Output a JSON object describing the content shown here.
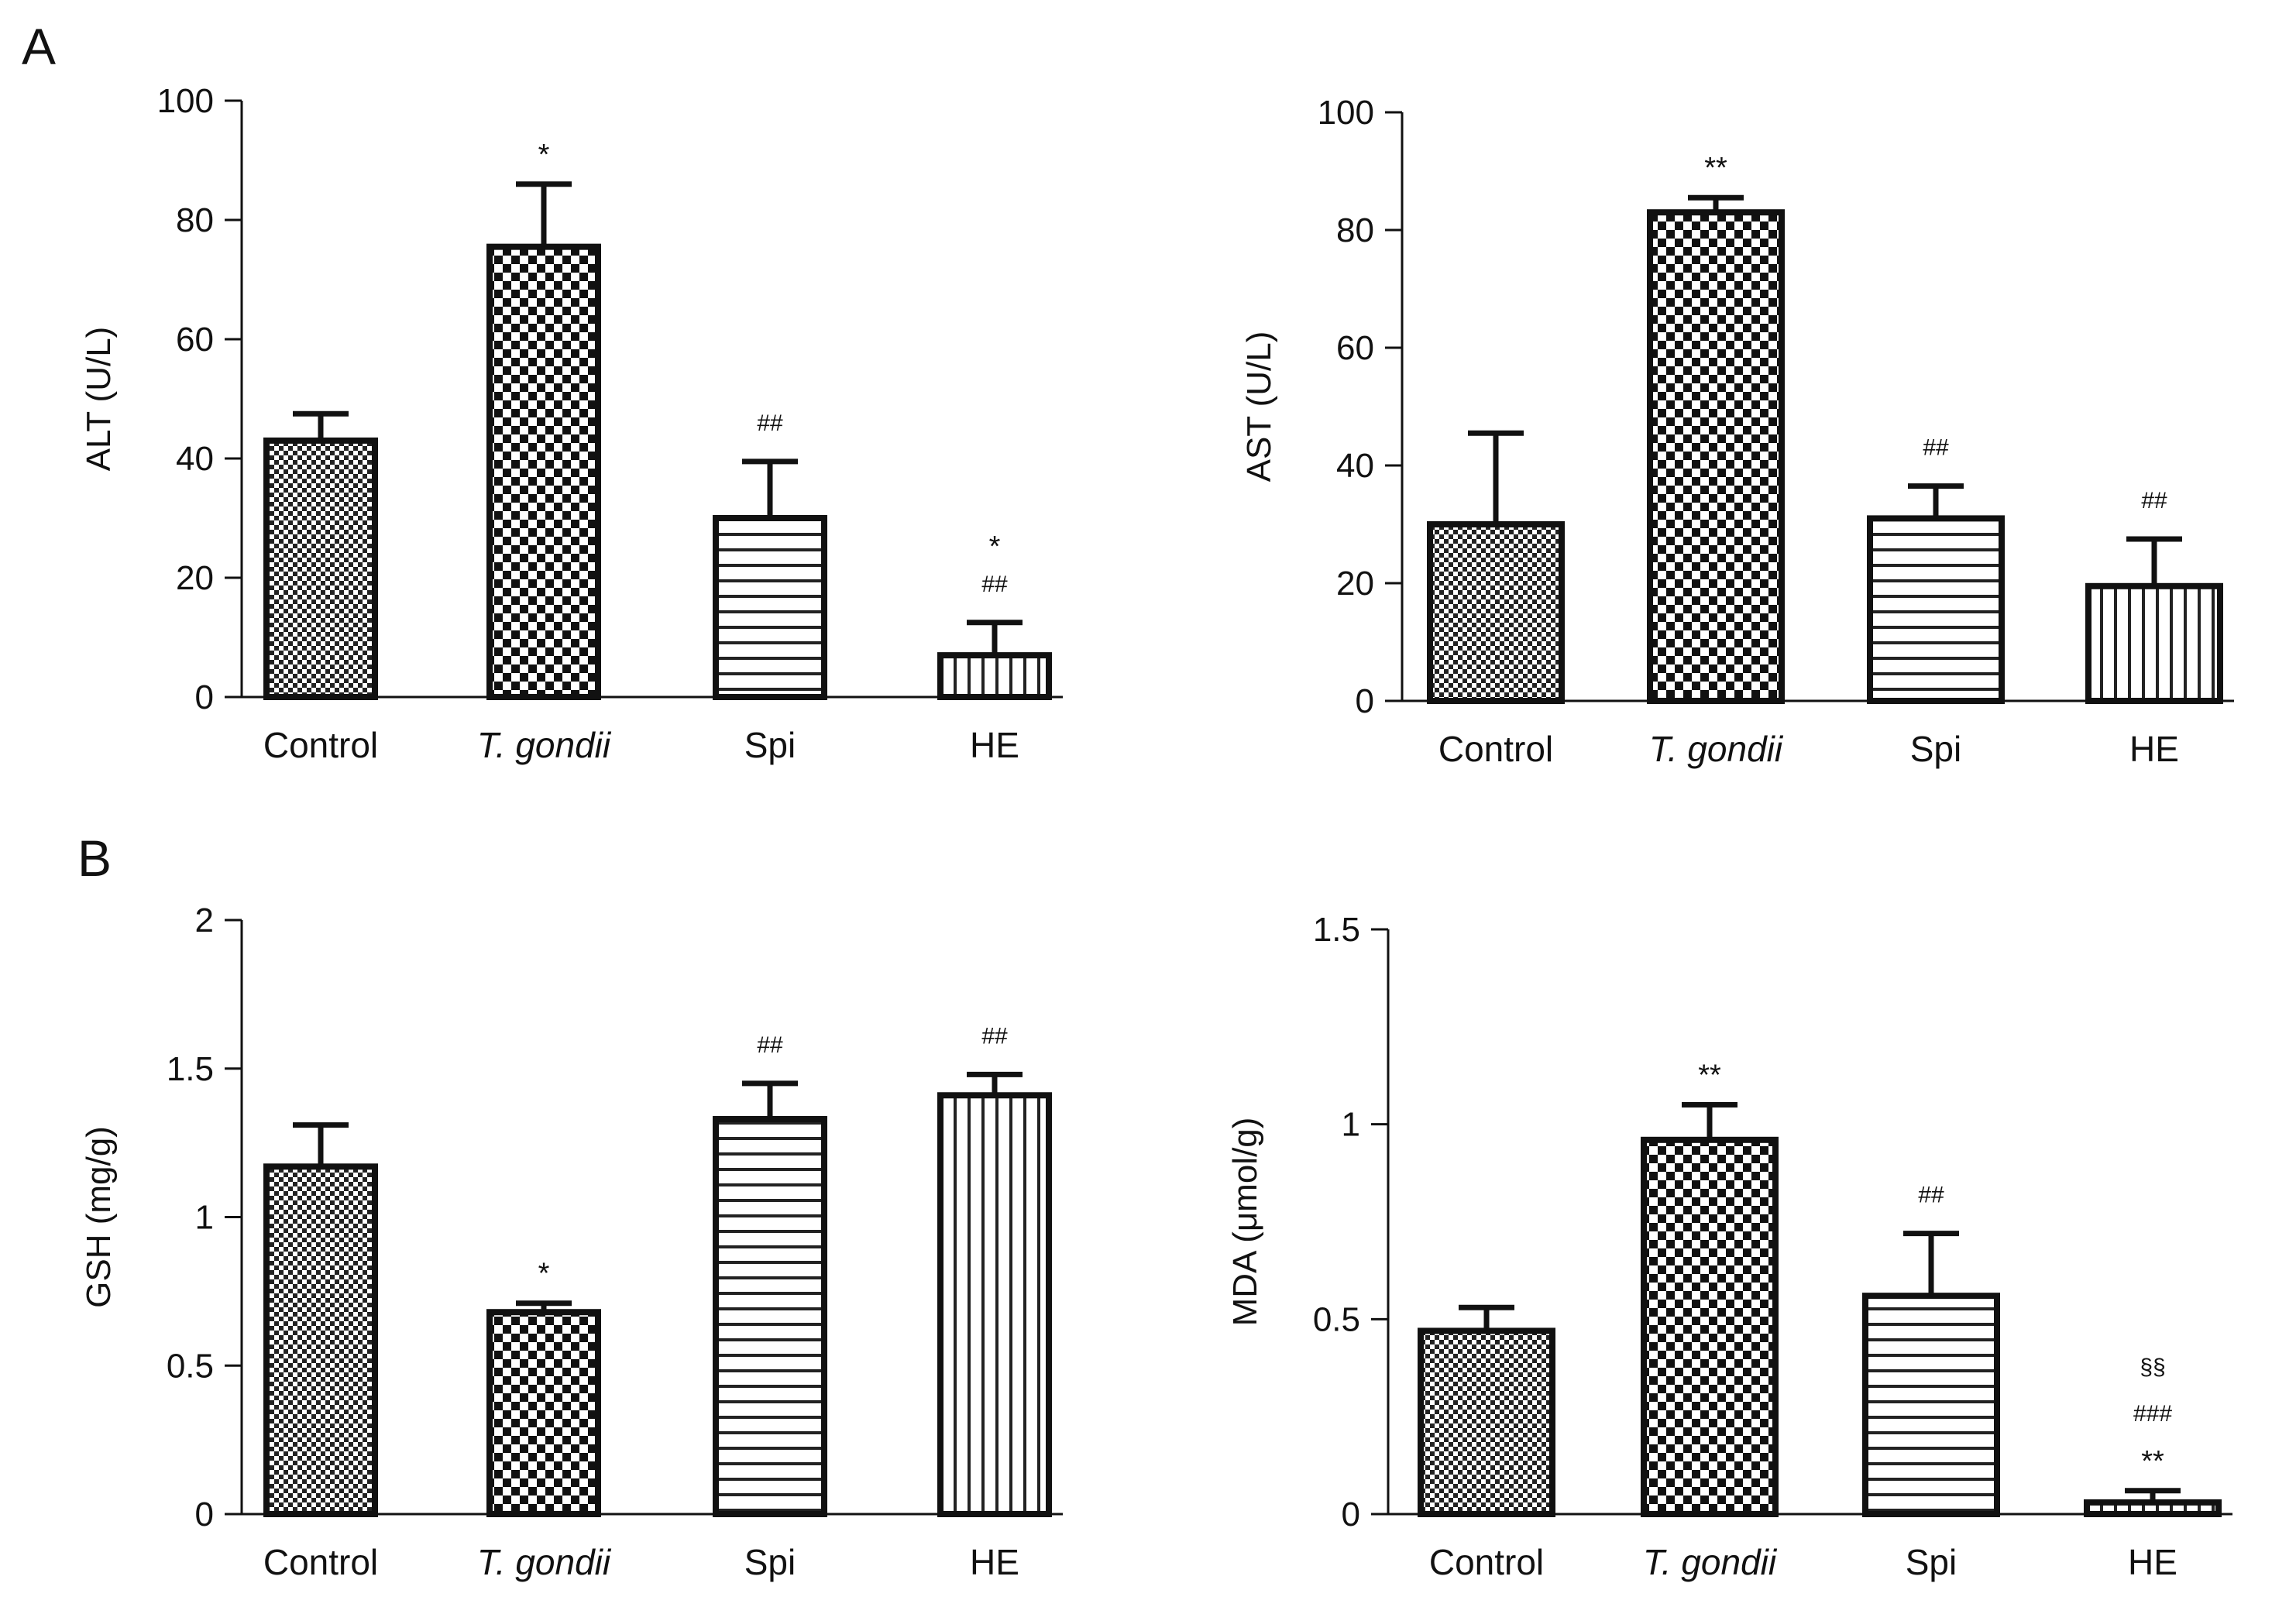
{
  "panels": {
    "a": "A",
    "b": "B"
  },
  "chart_data": [
    {
      "type": "bar",
      "categories": [
        "Control",
        "T. gondii",
        "Spi",
        "HE"
      ],
      "values": [
        43,
        75.5,
        30,
        7
      ],
      "errors": [
        4.5,
        10.5,
        9.5,
        5.5
      ],
      "annotations": [
        [],
        [
          "*"
        ],
        [
          "##"
        ],
        [
          "##",
          "*"
        ]
      ],
      "ylabel": "ALT (U/L)",
      "ylim": [
        0,
        100
      ],
      "yticks": [
        0,
        20,
        40,
        60,
        80,
        100
      ],
      "ytick_labels": [
        "0",
        "20",
        "40",
        "60",
        "80",
        "100"
      ],
      "patterns": [
        "fine-check",
        "coarse-check",
        "hlines",
        "vlines"
      ]
    },
    {
      "type": "bar",
      "categories": [
        "Control",
        "T. gondii",
        "Spi",
        "HE"
      ],
      "values": [
        30,
        83,
        31,
        19.5
      ],
      "errors": [
        15.5,
        2.5,
        5.5,
        8
      ],
      "annotations": [
        [],
        [
          "**"
        ],
        [
          "##"
        ],
        [
          "##"
        ]
      ],
      "ylabel": "AST (U/L)",
      "ylim": [
        0,
        100
      ],
      "yticks": [
        0,
        20,
        40,
        60,
        80,
        100
      ],
      "ytick_labels": [
        "0",
        "20",
        "40",
        "60",
        "80",
        "100"
      ],
      "patterns": [
        "fine-check",
        "coarse-check",
        "hlines",
        "vlines"
      ]
    },
    {
      "type": "bar",
      "categories": [
        "Control",
        "T. gondii",
        "Spi",
        "HE"
      ],
      "values": [
        1.17,
        0.68,
        1.33,
        1.41
      ],
      "errors": [
        0.14,
        0.03,
        0.12,
        0.07
      ],
      "annotations": [
        [],
        [
          "*"
        ],
        [
          "##"
        ],
        [
          "##"
        ]
      ],
      "ylabel": "GSH (mg/g)",
      "ylim": [
        0,
        2
      ],
      "yticks": [
        0,
        0.5,
        1,
        1.5,
        2
      ],
      "ytick_labels": [
        "0",
        "0.5",
        "1",
        "1.5",
        "2"
      ],
      "patterns": [
        "fine-check",
        "coarse-check",
        "hlines",
        "vlines"
      ]
    },
    {
      "type": "bar",
      "categories": [
        "Control",
        "T. gondii",
        "Spi",
        "HE"
      ],
      "values": [
        0.47,
        0.96,
        0.56,
        0.03
      ],
      "errors": [
        0.06,
        0.09,
        0.16,
        0.03
      ],
      "annotations": [
        [],
        [
          "**"
        ],
        [
          "##"
        ],
        [
          "**",
          "###",
          "§§"
        ]
      ],
      "ylabel": "MDA (μmol/g)",
      "ylim": [
        0,
        1.5
      ],
      "yticks": [
        0,
        0.5,
        1,
        1.5
      ],
      "ytick_labels": [
        "0",
        "0.5",
        "1",
        "1.5"
      ],
      "patterns": [
        "fine-check",
        "coarse-check",
        "hlines",
        "vlines"
      ]
    }
  ]
}
